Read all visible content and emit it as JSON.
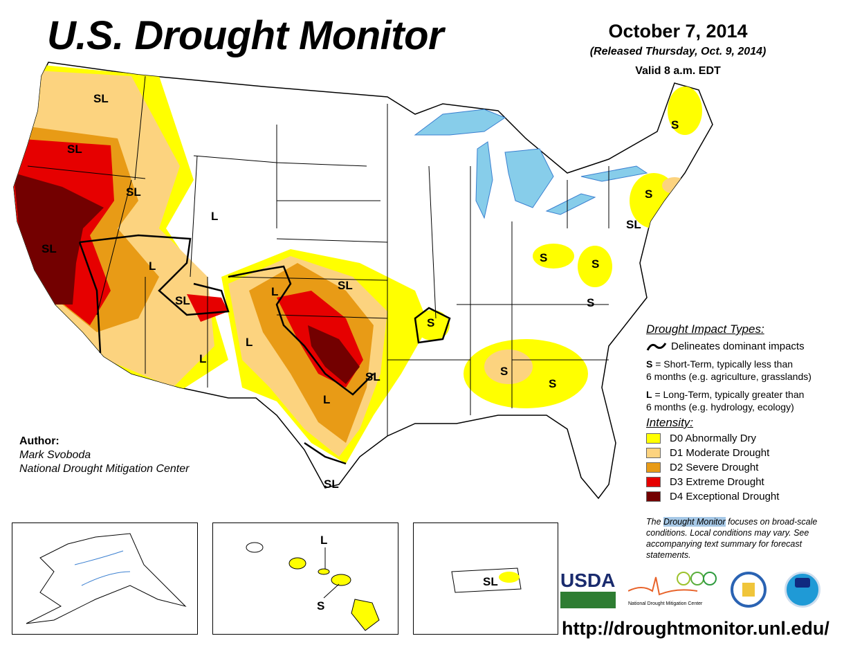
{
  "header": {
    "title": "U.S. Drought Monitor",
    "date": "October 7, 2014",
    "released": "(Released Thursday, Oct. 9, 2014)",
    "valid": "Valid 8 a.m. EDT"
  },
  "author": {
    "heading": "Author:",
    "name": "Mark Svoboda",
    "org": "National Drought Mitigation Center"
  },
  "impact_legend": {
    "heading": "Drought Impact Types:",
    "delineates": "Delineates dominant impacts",
    "short_key": "S",
    "short_text": " = Short-Term, typically less than",
    "short_text2": "6 months (e.g. agriculture, grasslands)",
    "long_key": "L",
    "long_text": " = Long-Term, typically greater than",
    "long_text2": "6 months (e.g. hydrology, ecology)"
  },
  "intensity": {
    "heading": "Intensity:",
    "items": [
      {
        "label": "D0 Abnormally Dry",
        "color": "#FFFF00"
      },
      {
        "label": "D1 Moderate Drought",
        "color": "#FCD37F"
      },
      {
        "label": "D2 Severe Drought",
        "color": "#E89B16"
      },
      {
        "label": "D3 Extreme Drought",
        "color": "#E60000"
      },
      {
        "label": "D4 Exceptional Drought",
        "color": "#730000"
      }
    ]
  },
  "note": {
    "pre": "The ",
    "highlight": "Drought Monitor",
    "post": " focuses on broad-scale conditions. Local conditions may vary. See accompanying text summary for forecast statements."
  },
  "map_labels": [
    "SL",
    "SL",
    "SL",
    "SL",
    "L",
    "L",
    "SL",
    "L",
    "SL",
    "L",
    "SL",
    "L",
    "L",
    "SL",
    "S",
    "S",
    "S",
    "S",
    "S",
    "S",
    "S",
    "S",
    "SL"
  ],
  "insets": {
    "hawaii_labels": [
      "L",
      "S"
    ],
    "pr_label": "SL"
  },
  "logos": {
    "usda": "USDA",
    "ndmc": "National Drought Mitigation Center",
    "commerce": "Department of Commerce",
    "noaa": "NOAA"
  },
  "url": "http://droughtmonitor.unl.edu/"
}
